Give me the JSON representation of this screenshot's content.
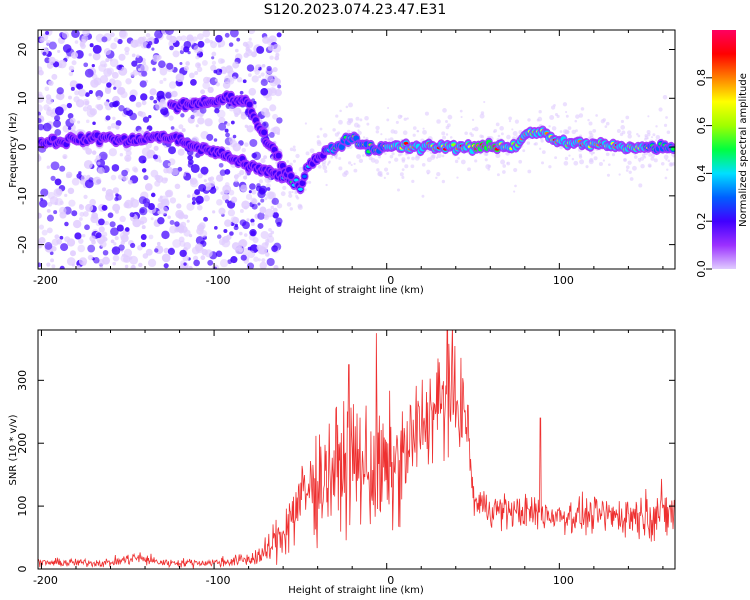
{
  "title": "S120.2023.074.23.47.E31",
  "chart_data": [
    {
      "type": "heatmap",
      "xlabel": "Height of straight line (km)",
      "ylabel": "Frequency (Hz)",
      "xlim": [
        -202,
        167
      ],
      "ylim": [
        -25,
        24
      ],
      "xticks": [
        -200,
        -100,
        0,
        100
      ],
      "yticks": [
        -20,
        -10,
        0,
        10,
        20
      ],
      "colorbar": {
        "label": "Normalized spectral amplitude",
        "range": [
          0,
          1
        ],
        "ticks": [
          0.0,
          0.2,
          0.4,
          0.6,
          0.8
        ],
        "colors": [
          "#e0ccff",
          "#9b30ff",
          "#4000ff",
          "#0060ff",
          "#00e0ff",
          "#00ff40",
          "#a0ff00",
          "#ffff00",
          "#ff8000",
          "#ff0000",
          "#ff0060"
        ]
      },
      "ridge": {
        "x": [
          -200,
          -180,
          -160,
          -150,
          -140,
          -125,
          -110,
          -100,
          -90,
          -80,
          -70,
          -60,
          -55,
          -50,
          -45,
          -40,
          -30,
          -20,
          -10,
          0,
          20,
          40,
          60,
          75,
          80,
          90,
          100,
          120,
          140,
          160,
          167
        ],
        "f": [
          1,
          1.5,
          2,
          1,
          2,
          2,
          0,
          -1,
          -2,
          -4,
          -5,
          -6,
          -7,
          -8,
          -4,
          -2,
          0,
          2,
          0,
          0,
          0,
          0,
          0,
          0,
          3,
          3,
          1,
          0.5,
          0,
          0,
          0
        ],
        "level": [
          0.2,
          0.25,
          0.3,
          0.35,
          0.3,
          0.35,
          0.3,
          0.3,
          0.3,
          0.3,
          0.35,
          0.4,
          0.45,
          0.45,
          0.4,
          0.45,
          0.55,
          0.6,
          0.6,
          0.7,
          0.9,
          0.85,
          0.95,
          0.8,
          0.7,
          0.75,
          0.8,
          0.85,
          0.8,
          0.6,
          0.5
        ]
      },
      "upper_branch": {
        "x": [
          -125,
          -110,
          -100,
          -90,
          -80,
          -75,
          -70,
          -65,
          -60,
          -55
        ],
        "f": [
          8.5,
          9,
          9.5,
          10,
          9,
          5,
          2,
          -1,
          -4,
          -6
        ]
      }
    },
    {
      "type": "line",
      "xlabel": "Height of straight line (km)",
      "ylabel": "SNR (10 * v/v)",
      "xlim": [
        -202,
        167
      ],
      "ylim": [
        0,
        380
      ],
      "xticks": [
        -200,
        -100,
        0,
        100
      ],
      "yticks": [
        0,
        100,
        200,
        300
      ],
      "color": "#ee3030",
      "envelope": {
        "x": [
          -202,
          -160,
          -145,
          -130,
          -100,
          -80,
          -70,
          -60,
          -50,
          -40,
          -30,
          -20,
          -10,
          0,
          10,
          20,
          30,
          40,
          45,
          48,
          50,
          60,
          80,
          100,
          120,
          140,
          167
        ],
        "mean": [
          10,
          10,
          18,
          10,
          10,
          15,
          25,
          60,
          110,
          140,
          160,
          170,
          160,
          150,
          175,
          230,
          260,
          270,
          250,
          200,
          110,
          95,
          90,
          85,
          85,
          85,
          90
        ],
        "amp": [
          6,
          6,
          10,
          6,
          6,
          10,
          20,
          40,
          60,
          80,
          80,
          85,
          90,
          90,
          80,
          70,
          70,
          80,
          60,
          40,
          25,
          25,
          25,
          25,
          25,
          30,
          40
        ]
      },
      "spikes": [
        {
          "x": -6,
          "y": 375
        },
        {
          "x": -22,
          "y": 325
        },
        {
          "x": 35,
          "y": 380
        },
        {
          "x": 89,
          "y": 240
        }
      ]
    }
  ]
}
